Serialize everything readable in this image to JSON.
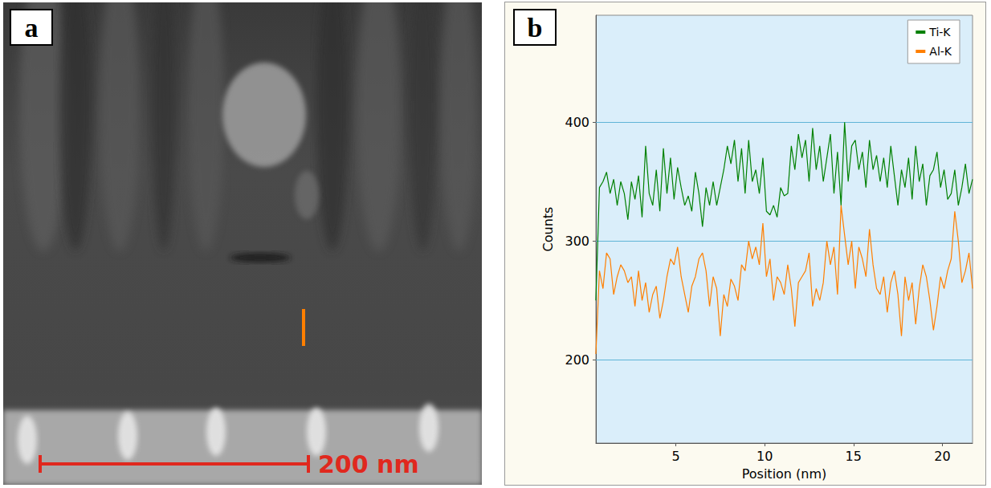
{
  "panel_a": {
    "label": "a",
    "scale_bar_label": "200 nm"
  },
  "panel_b": {
    "label": "b"
  },
  "chart_data": {
    "type": "line",
    "x_label": "Position (nm)",
    "y_label": "Counts",
    "x": [
      0.5,
      0.7,
      0.9,
      1.1,
      1.3,
      1.5,
      1.7,
      1.9,
      2.1,
      2.3,
      2.5,
      2.7,
      2.9,
      3.1,
      3.3,
      3.5,
      3.7,
      3.9,
      4.1,
      4.3,
      4.5,
      4.7,
      4.9,
      5.1,
      5.3,
      5.5,
      5.7,
      5.9,
      6.1,
      6.3,
      6.5,
      6.7,
      6.9,
      7.1,
      7.3,
      7.5,
      7.7,
      7.9,
      8.1,
      8.3,
      8.5,
      8.7,
      8.9,
      9.1,
      9.3,
      9.5,
      9.7,
      9.9,
      10.1,
      10.3,
      10.5,
      10.7,
      10.9,
      11.1,
      11.3,
      11.5,
      11.7,
      11.9,
      12.1,
      12.3,
      12.5,
      12.7,
      12.9,
      13.1,
      13.3,
      13.5,
      13.7,
      13.9,
      14.1,
      14.3,
      14.5,
      14.7,
      14.9,
      15.1,
      15.3,
      15.5,
      15.7,
      15.9,
      16.1,
      16.3,
      16.5,
      16.7,
      16.9,
      17.1,
      17.3,
      17.5,
      17.7,
      17.9,
      18.1,
      18.3,
      18.5,
      18.7,
      18.9,
      19.1,
      19.3,
      19.5,
      19.7,
      19.9,
      20.1,
      20.3,
      20.5,
      20.7,
      20.9,
      21.1,
      21.3,
      21.5,
      21.7
    ],
    "series": [
      {
        "name": "Ti-K",
        "color": "#008000",
        "values": [
          250,
          345,
          350,
          358,
          340,
          352,
          330,
          350,
          340,
          318,
          350,
          335,
          355,
          320,
          380,
          340,
          330,
          360,
          325,
          378,
          340,
          370,
          335,
          362,
          345,
          330,
          338,
          325,
          358,
          340,
          312,
          345,
          330,
          350,
          330,
          345,
          360,
          380,
          365,
          385,
          350,
          378,
          340,
          385,
          350,
          360,
          340,
          370,
          325,
          322,
          330,
          320,
          345,
          338,
          340,
          380,
          360,
          390,
          370,
          385,
          350,
          395,
          360,
          380,
          350,
          370,
          390,
          340,
          375,
          330,
          400,
          350,
          380,
          385,
          360,
          375,
          345,
          385,
          360,
          372,
          350,
          370,
          345,
          380,
          355,
          330,
          360,
          345,
          370,
          335,
          380,
          350,
          365,
          330,
          355,
          360,
          375,
          345,
          360,
          335,
          340,
          360,
          330,
          345,
          365,
          340,
          352
        ]
      },
      {
        "name": "Al-K",
        "color": "#ff7f00",
        "values": [
          205,
          275,
          260,
          290,
          285,
          255,
          270,
          280,
          275,
          265,
          270,
          245,
          275,
          250,
          265,
          240,
          255,
          262,
          235,
          250,
          270,
          285,
          280,
          295,
          270,
          255,
          240,
          262,
          270,
          285,
          290,
          275,
          245,
          270,
          260,
          220,
          255,
          245,
          268,
          262,
          250,
          280,
          275,
          300,
          285,
          295,
          280,
          315,
          270,
          285,
          250,
          270,
          265,
          255,
          280,
          260,
          228,
          265,
          270,
          275,
          290,
          245,
          260,
          250,
          265,
          300,
          280,
          295,
          255,
          330,
          305,
          280,
          300,
          260,
          295,
          285,
          270,
          310,
          280,
          260,
          255,
          270,
          240,
          265,
          275,
          255,
          220,
          270,
          250,
          265,
          230,
          260,
          280,
          270,
          250,
          225,
          245,
          270,
          260,
          275,
          285,
          325,
          300,
          265,
          275,
          290,
          260
        ]
      }
    ],
    "xlim": [
      0.5,
      21.7
    ],
    "ylim": [
      130,
      490
    ],
    "xticks": [
      5,
      10,
      15,
      20
    ],
    "yticks": [
      200,
      300,
      400
    ],
    "grid": true,
    "legend": "upper right"
  }
}
